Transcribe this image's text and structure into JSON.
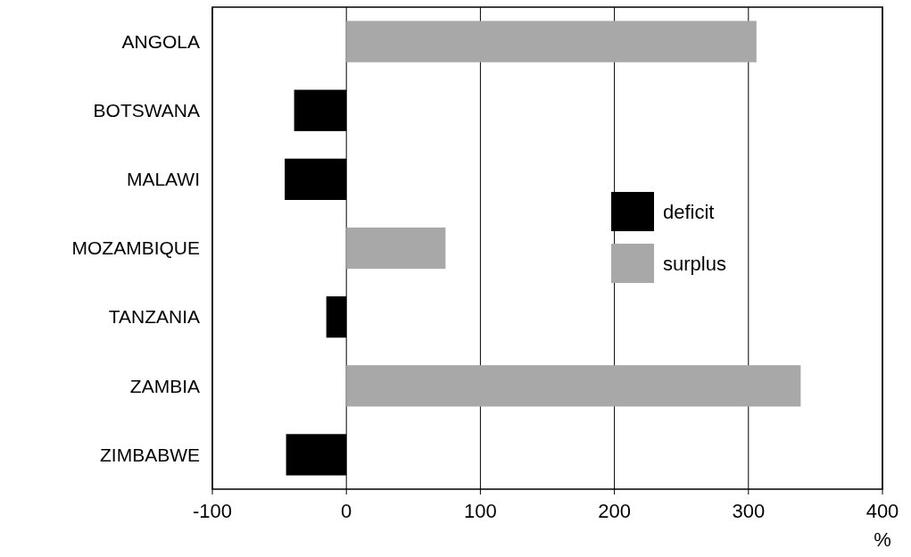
{
  "chart_data": {
    "type": "bar",
    "orientation": "horizontal",
    "stacked": true,
    "categories": [
      "ANGOLA",
      "BOTSWANA",
      "MALAWI",
      "MOZAMBIQUE",
      "TANZANIA",
      "ZAMBIA",
      "ZIMBABWE"
    ],
    "series": [
      {
        "name": "deficit",
        "color": "#000000",
        "values": [
          null,
          -39,
          -46,
          null,
          -15,
          null,
          -45
        ]
      },
      {
        "name": "surplus",
        "color": "#a8a8a8",
        "values": [
          306,
          null,
          null,
          74,
          null,
          339,
          null
        ]
      }
    ],
    "xlim": [
      -100,
      400
    ],
    "xticks": [
      -100,
      0,
      100,
      200,
      300,
      400
    ],
    "xlabel": "%",
    "grid": "x",
    "legend": "right"
  }
}
